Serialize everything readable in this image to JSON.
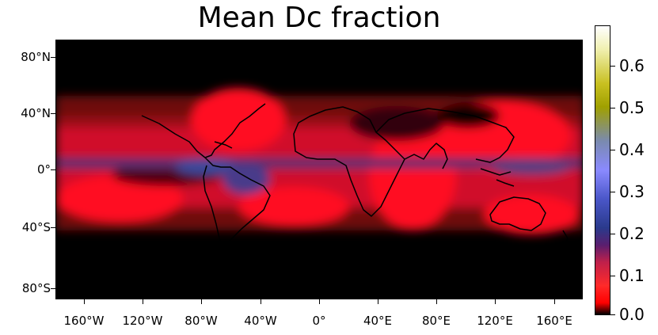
{
  "title": "Mean Dc fraction",
  "y_ticks": [
    "80°N",
    "40°N",
    "0°",
    "40°S",
    "80°S"
  ],
  "x_ticks": [
    "160°W",
    "120°W",
    "80°W",
    "40°W",
    "0°",
    "40°E",
    "80°E",
    "120°E",
    "160°E"
  ],
  "colorbar": {
    "ticks": [
      "0.6",
      "0.5",
      "0.4",
      "0.3",
      "0.2",
      "0.1",
      "0.0"
    ],
    "min": 0.0,
    "max": 0.68
  },
  "colors": {
    "background": "#000000",
    "low": "#ff0000",
    "mid": "#8a8aff",
    "high": "#ffffff"
  }
}
